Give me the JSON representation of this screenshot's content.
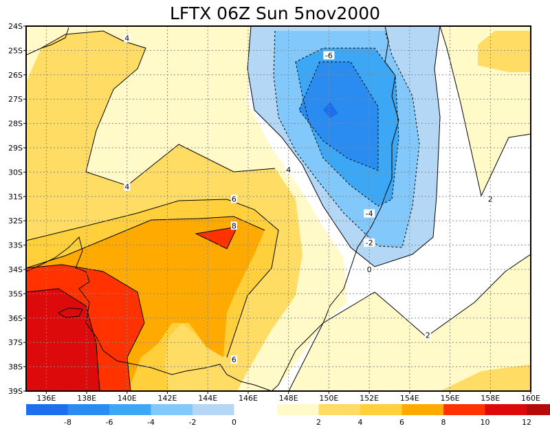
{
  "title": "LFTX 06Z Sun 5nov2000",
  "map": {
    "lon_range": [
      135,
      160
    ],
    "lat_range": [
      -39,
      -24
    ],
    "lat_ticks": [
      {
        "lat": -24,
        "label": "24S"
      },
      {
        "lat": -25,
        "label": "25S"
      },
      {
        "lat": -26,
        "label": "26S"
      },
      {
        "lat": -27,
        "label": "27S"
      },
      {
        "lat": -28,
        "label": "28S"
      },
      {
        "lat": -29,
        "label": "29S"
      },
      {
        "lat": -30,
        "label": "30S"
      },
      {
        "lat": -31,
        "label": "31S"
      },
      {
        "lat": -32,
        "label": "32S"
      },
      {
        "lat": -33,
        "label": "33S"
      },
      {
        "lat": -34,
        "label": "34S"
      },
      {
        "lat": -35,
        "label": "35S"
      },
      {
        "lat": -36,
        "label": "36S"
      },
      {
        "lat": -37,
        "label": "37S"
      },
      {
        "lat": -38,
        "label": "38S"
      },
      {
        "lat": -39,
        "label": "39S"
      }
    ],
    "lon_ticks": [
      {
        "lon": 136,
        "label": "136E"
      },
      {
        "lon": 138,
        "label": "138E"
      },
      {
        "lon": 140,
        "label": "140E"
      },
      {
        "lon": 142,
        "label": "142E"
      },
      {
        "lon": 144,
        "label": "144E"
      },
      {
        "lon": 146,
        "label": "146E"
      },
      {
        "lon": 148,
        "label": "148E"
      },
      {
        "lon": 150,
        "label": "150E"
      },
      {
        "lon": 152,
        "label": "152E"
      },
      {
        "lon": 154,
        "label": "154E"
      },
      {
        "lon": 156,
        "label": "156E"
      },
      {
        "lon": 158,
        "label": "158E"
      },
      {
        "lon": 160,
        "label": "160E"
      }
    ],
    "contour_labels": [
      {
        "text": "4",
        "lon": 140.0,
        "lat": -24.5
      },
      {
        "text": "4",
        "lon": 140.0,
        "lat": -30.6
      },
      {
        "text": "4",
        "lon": 148.0,
        "lat": -29.9
      },
      {
        "text": "6",
        "lon": 145.3,
        "lat": -31.1
      },
      {
        "text": "8",
        "lon": 145.3,
        "lat": -32.2
      },
      {
        "text": "6",
        "lon": 145.3,
        "lat": -37.7
      },
      {
        "text": "-6",
        "lon": 150.0,
        "lat": -25.2
      },
      {
        "text": "-4",
        "lon": 152.0,
        "lat": -31.7
      },
      {
        "text": "-2",
        "lon": 152.0,
        "lat": -32.9
      },
      {
        "text": "0",
        "lon": 152.0,
        "lat": -34.0
      },
      {
        "text": "2",
        "lon": 154.9,
        "lat": -36.7
      },
      {
        "text": "2",
        "lon": 158.0,
        "lat": -31.1
      }
    ]
  },
  "colorbar": {
    "left": [
      {
        "color": "#1e6ef0",
        "label": "-8"
      },
      {
        "color": "#2a8cf0",
        "label": "-6"
      },
      {
        "color": "#3ca8f5",
        "label": "-4"
      },
      {
        "color": "#82c8fa",
        "label": "-2"
      },
      {
        "color": "#b4d7f5",
        "label": "0"
      }
    ],
    "right": [
      {
        "color": "#fffac8",
        "label": "2"
      },
      {
        "color": "#ffdc64",
        "label": "4"
      },
      {
        "color": "#ffd03c",
        "label": "6"
      },
      {
        "color": "#ffaa00",
        "label": "8"
      },
      {
        "color": "#ff3200",
        "label": "10"
      },
      {
        "color": "#dc0a0a",
        "label": "12"
      },
      {
        "color": "#b40a0a",
        "label": ""
      }
    ]
  },
  "colors": {
    "neg8": "#1e6ef0",
    "neg6": "#2a8cf0",
    "neg4": "#3ca8f5",
    "neg2": "#82c8fa",
    "neg0": "#b4d7f5",
    "pos2": "#fffac8",
    "pos4": "#ffdc64",
    "pos6": "#ffd03c",
    "pos8": "#ffaa00",
    "pos10": "#ff3200",
    "pos12": "#dc0a0a",
    "pos14": "#b40a0a"
  }
}
